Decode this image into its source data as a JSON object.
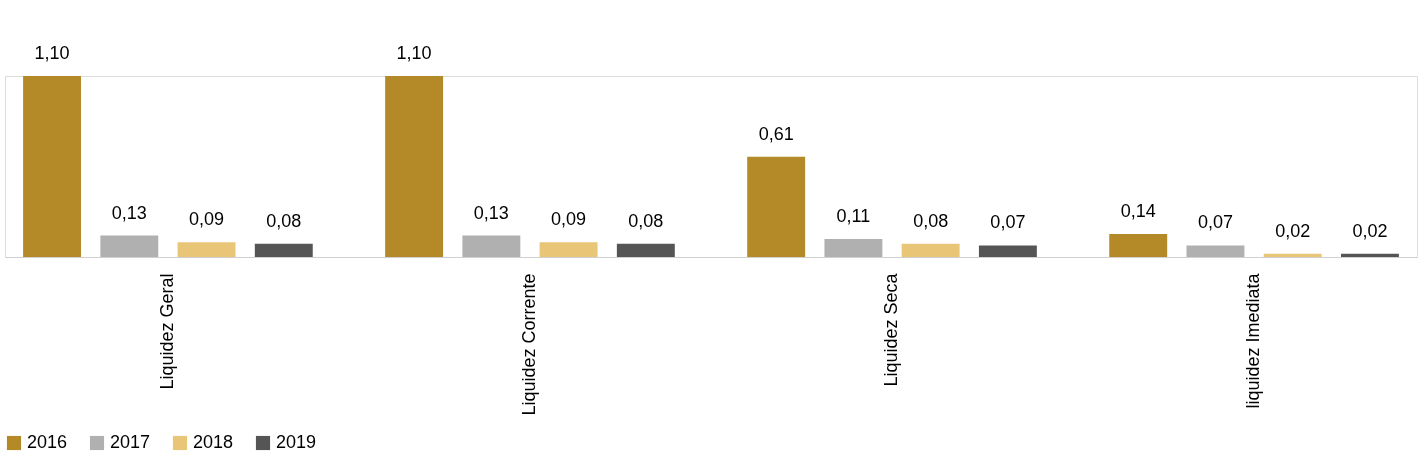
{
  "chart_data": {
    "type": "bar",
    "categories": [
      "Liquidez Geral",
      "Liquidez Corrente",
      "Liquidez Seca",
      "liquidez Imediata"
    ],
    "series": [
      {
        "name": "2016",
        "color": "#b38a27",
        "values": [
          1.1,
          1.1,
          0.61,
          0.14
        ],
        "value_labels": [
          "1,10",
          "1,10",
          "0,61",
          "0,14"
        ]
      },
      {
        "name": "2017",
        "color": "#b0b0b0",
        "values": [
          0.13,
          0.13,
          0.11,
          0.07
        ],
        "value_labels": [
          "0,13",
          "0,13",
          "0,11",
          "0,07"
        ]
      },
      {
        "name": "2018",
        "color": "#e8c577",
        "values": [
          0.09,
          0.09,
          0.08,
          0.02
        ],
        "value_labels": [
          "0,09",
          "0,09",
          "0,08",
          "0,02"
        ]
      },
      {
        "name": "2019",
        "color": "#555555",
        "values": [
          0.08,
          0.08,
          0.07,
          0.02
        ],
        "value_labels": [
          "0,08",
          "0,08",
          "0,07",
          "0,02"
        ]
      }
    ],
    "legend": "bottom",
    "grid": false
  }
}
